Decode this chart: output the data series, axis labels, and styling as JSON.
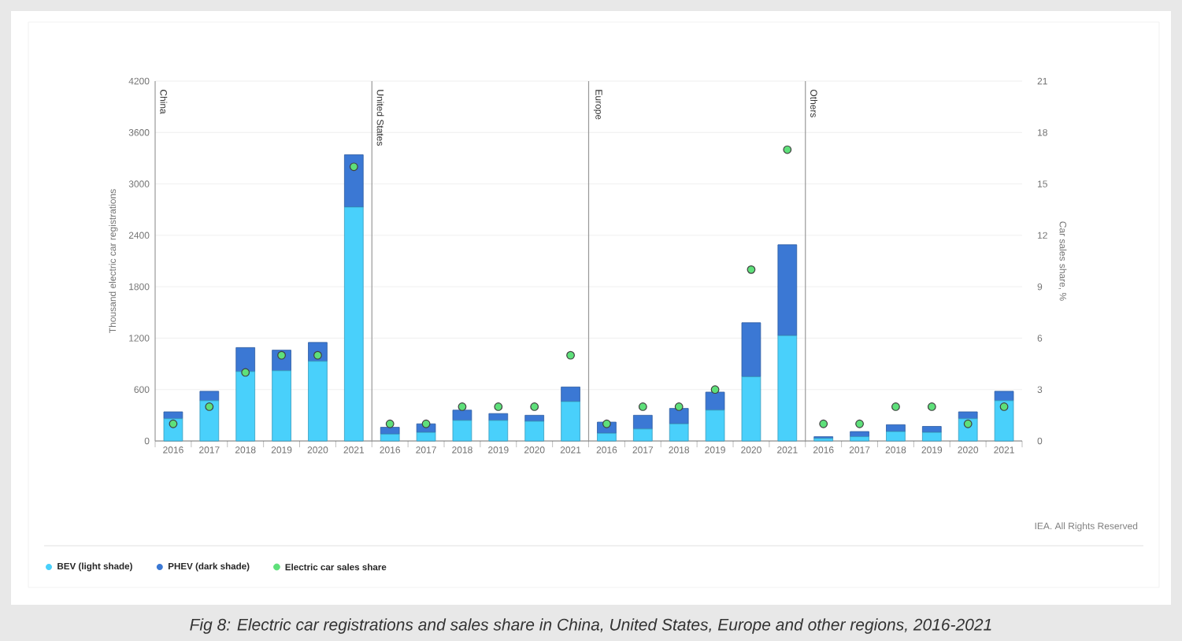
{
  "chart_data": {
    "type": "bar",
    "stacked": true,
    "title": "Fig 8: Electric car registrations and sales share in China, United States, Europe and other regions, 2016-2021",
    "ylabel": "Thousand electric car registrations",
    "y2label": "Car sales share, %",
    "categories": [
      "2016",
      "2017",
      "2018",
      "2019",
      "2020",
      "2021",
      "2016",
      "2017",
      "2018",
      "2019",
      "2020",
      "2021",
      "2016",
      "2017",
      "2018",
      "2019",
      "2020",
      "2021",
      "2016",
      "2017",
      "2018",
      "2019",
      "2020",
      "2021"
    ],
    "series": [
      {
        "name": "BEV (light shade)",
        "color": "#49d0fb",
        "values": [
          260,
          470,
          810,
          820,
          930,
          2730,
          80,
          100,
          240,
          240,
          230,
          460,
          90,
          140,
          200,
          360,
          750,
          1230,
          30,
          50,
          110,
          100,
          260,
          470
        ]
      },
      {
        "name": "PHEV (dark shade)",
        "color": "#3b78d4",
        "values": [
          80,
          110,
          280,
          240,
          220,
          610,
          80,
          100,
          120,
          80,
          70,
          170,
          130,
          160,
          180,
          210,
          630,
          1060,
          20,
          60,
          80,
          70,
          80,
          110
        ]
      },
      {
        "name": "Electric car sales share",
        "type": "scatter",
        "axis": "y2",
        "color": "#5ee07a",
        "values": [
          1,
          2,
          4,
          5,
          5,
          16,
          1,
          1,
          2,
          2,
          2,
          5,
          1,
          2,
          2,
          3,
          10,
          17,
          1,
          1,
          2,
          2,
          1,
          2
        ]
      }
    ],
    "ylim": [
      0,
      4200
    ],
    "yticks": [
      0,
      600,
      1200,
      1800,
      2400,
      3000,
      3600,
      4200
    ],
    "y2lim": [
      0,
      21
    ],
    "y2ticks": [
      0,
      3,
      6,
      9,
      12,
      15,
      18,
      21
    ],
    "annotations": [
      "China",
      "United States",
      "Europe",
      "Others",
      "IEA. All Rights Reserved"
    ],
    "grid": "y",
    "legend": "bottom left",
    "marker": "circle"
  }
}
